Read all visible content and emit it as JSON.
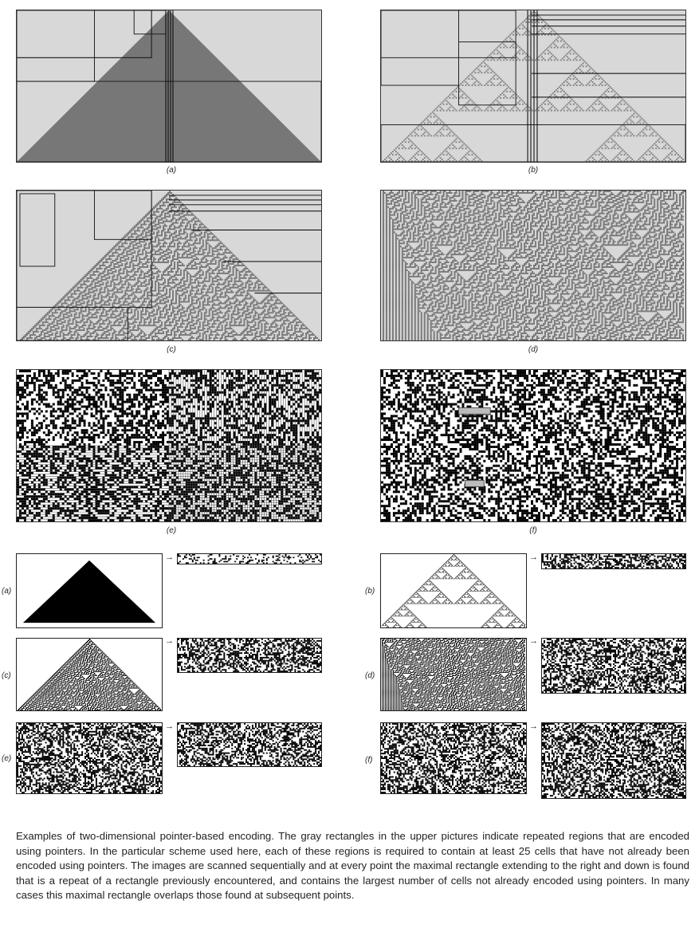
{
  "figure": {
    "upper_labels": [
      "(a)",
      "(b)",
      "(c)",
      "(d)",
      "(e)",
      "(f)"
    ],
    "lower_labels": [
      "(a)",
      "(b)",
      "(c)",
      "(d)",
      "(e)",
      "(f)"
    ],
    "arrow_glyph": "→"
  },
  "caption": "Examples of two-dimensional pointer-based encoding. The gray rectangles in the upper pictures indicate repeated regions that are encoded using pointers. In the particular scheme used here, each of these regions is required to contain at least 25 cells that have not already been encoded using pointers. The images are scanned sequentially and at every point the maximal rectangle extending to the right and down is found that is a repeat of a rectangle previously encountered, and contains the largest number of cells not already encoded using pointers. In many cases this maximal rectangle overlaps those found at subsequent points.",
  "colors": {
    "gray_region": "#d8d8d8",
    "dark_cell": "#777777",
    "black": "#000000",
    "white": "#ffffff"
  }
}
